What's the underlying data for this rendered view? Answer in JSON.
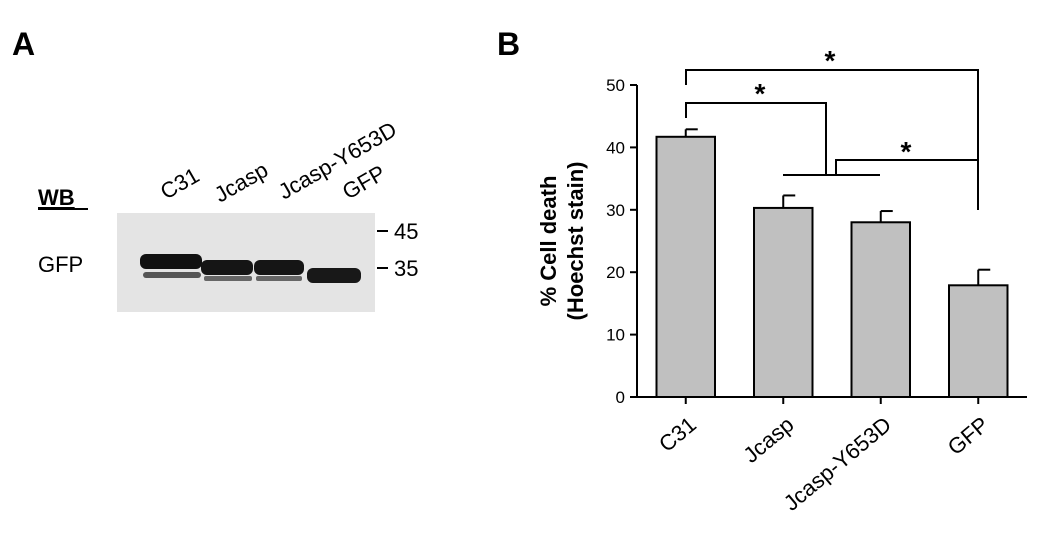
{
  "panel_a": {
    "label": "A",
    "blot_label": "WB",
    "protein": "GFP",
    "lanes": [
      "C31",
      "Jcasp",
      "Jcasp-Y653D",
      "GFP"
    ],
    "markers": [
      45,
      35
    ]
  },
  "chart_data": {
    "type": "bar",
    "panel_label": "B",
    "y_label": [
      "% Cell death",
      "(Hoechst stain)"
    ],
    "categories": [
      "C31",
      "Jcasp",
      "Jcasp-Y653D",
      "GFP"
    ],
    "values": [
      41.7,
      30.3,
      28.0,
      17.9
    ],
    "errors": [
      1.2,
      2.0,
      1.8,
      2.5
    ],
    "color": "#c0c0c0",
    "ylim": [
      0,
      50
    ],
    "yticks": [
      0,
      10,
      20,
      30,
      40,
      50
    ],
    "annotations": [
      "*",
      "*",
      "*"
    ]
  }
}
